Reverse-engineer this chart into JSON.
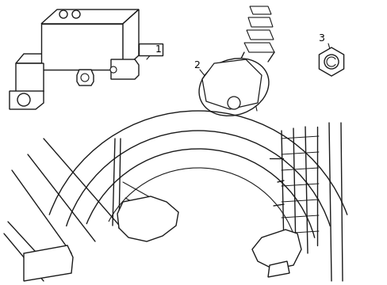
{
  "background_color": "#ffffff",
  "line_color": "#1a1a1a",
  "line_width": 1.0,
  "label_1": "1",
  "label_2": "2",
  "label_3": "3",
  "figsize": [
    4.89,
    3.6
  ],
  "dpi": 100
}
